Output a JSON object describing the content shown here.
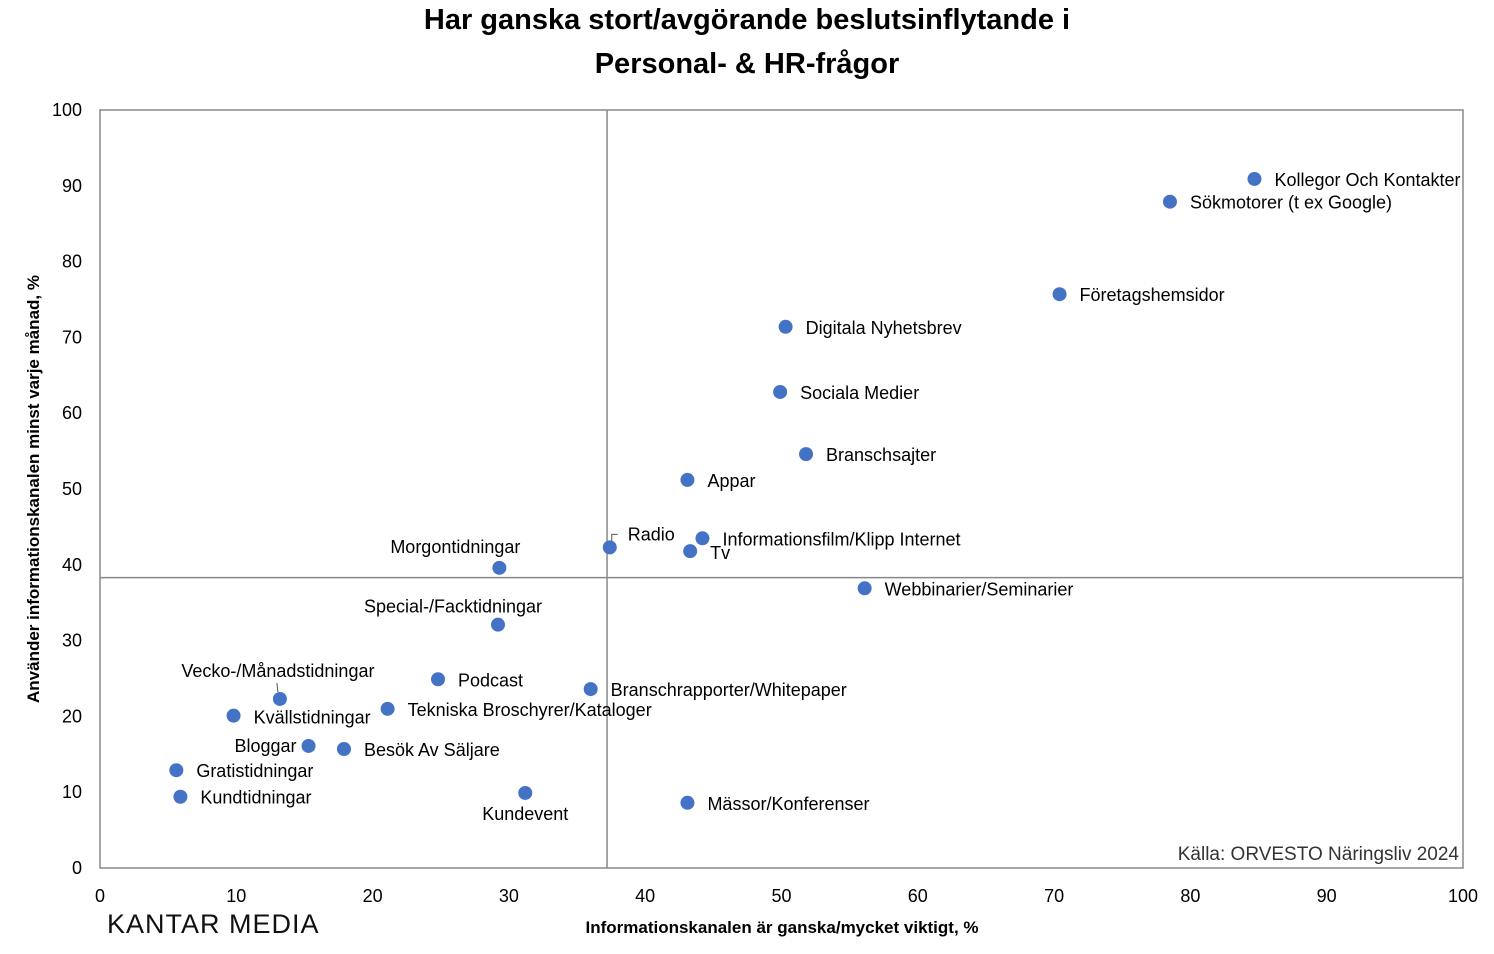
{
  "chart_data": {
    "type": "scatter",
    "title": [
      "Har ganska stort/avgörande beslutsinflytande i",
      "Personal- & HR-frågor"
    ],
    "xlabel": "Informationskanalen är ganska/mycket viktigt, %",
    "ylabel": "Använder informationskanalen minst varje månad, %",
    "xlim": [
      0,
      100
    ],
    "ylim": [
      0,
      100
    ],
    "xticks": [
      0,
      10,
      20,
      30,
      40,
      50,
      60,
      70,
      80,
      90,
      100
    ],
    "yticks": [
      0,
      10,
      20,
      30,
      40,
      50,
      60,
      70,
      80,
      90,
      100
    ],
    "reference_lines": {
      "x": 37.2,
      "y": 38.3
    },
    "grid": false,
    "marker_color": "#4472C4",
    "points": [
      {
        "label": "Kollegor Och Kontakter",
        "x": 84.7,
        "y": 90.9
      },
      {
        "label": "Sökmotorer (t ex Google)",
        "x": 78.5,
        "y": 87.9
      },
      {
        "label": "Företagshemsidor",
        "x": 70.4,
        "y": 75.7
      },
      {
        "label": "Digitala Nyhetsbrev",
        "x": 50.3,
        "y": 71.4
      },
      {
        "label": "Sociala Medier",
        "x": 49.9,
        "y": 62.8
      },
      {
        "label": "Branschsajter",
        "x": 51.8,
        "y": 54.6
      },
      {
        "label": "Appar",
        "x": 43.1,
        "y": 51.2
      },
      {
        "label": "Radio",
        "x": 37.4,
        "y": 42.3
      },
      {
        "label": "Informationsfilm/Klipp Internet",
        "x": 44.2,
        "y": 43.5
      },
      {
        "label": "Tv",
        "x": 43.3,
        "y": 41.8
      },
      {
        "label": "Morgontidningar",
        "x": 29.3,
        "y": 39.6
      },
      {
        "label": "Webbinarier/Seminarier",
        "x": 56.1,
        "y": 36.9
      },
      {
        "label": "Special-/Facktidningar",
        "x": 29.2,
        "y": 32.1
      },
      {
        "label": "Vecko-/Månadstidningar",
        "x": 13.2,
        "y": 22.3
      },
      {
        "label": "Podcast",
        "x": 24.8,
        "y": 24.9
      },
      {
        "label": "Branschrapporter/Whitepaper",
        "x": 36.0,
        "y": 23.6
      },
      {
        "label": "Kvällstidningar",
        "x": 9.8,
        "y": 20.1
      },
      {
        "label": "Tekniska Broschyrer/Kataloger",
        "x": 21.1,
        "y": 21.0
      },
      {
        "label": "Bloggar",
        "x": 15.3,
        "y": 16.1
      },
      {
        "label": "Besök Av Säljare",
        "x": 17.9,
        "y": 15.7
      },
      {
        "label": "Gratistidningar",
        "x": 5.6,
        "y": 12.9
      },
      {
        "label": "Kundtidningar",
        "x": 5.9,
        "y": 9.4
      },
      {
        "label": "Kundevent",
        "x": 31.2,
        "y": 9.9
      },
      {
        "label": "Mässor/Konferenser",
        "x": 43.1,
        "y": 8.6
      }
    ],
    "source": "Källa: ORVESTO Näringsliv 2024"
  },
  "logo": "KANTAR MEDIA"
}
